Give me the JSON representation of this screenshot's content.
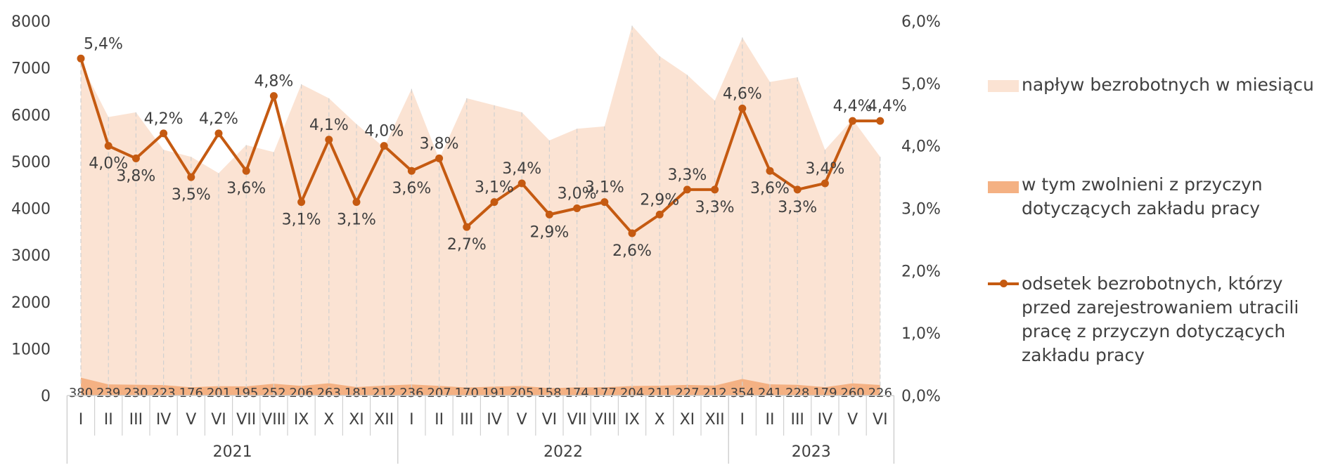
{
  "chart_data": {
    "type": "area",
    "categories": [
      "I",
      "II",
      "III",
      "IV",
      "V",
      "VI",
      "VII",
      "VIII",
      "IX",
      "X",
      "XI",
      "XII",
      "I",
      "II",
      "III",
      "IV",
      "V",
      "VI",
      "VII",
      "VIII",
      "IX",
      "X",
      "XI",
      "XII",
      "I",
      "II",
      "III",
      "IV",
      "V",
      "VI"
    ],
    "years": [
      {
        "label": "2021",
        "count": 12
      },
      {
        "label": "2022",
        "count": 12
      },
      {
        "label": "2023",
        "count": 6
      }
    ],
    "left_axis": {
      "min": 0,
      "max": 8000,
      "ticks": [
        "0",
        "1000",
        "2000",
        "3000",
        "4000",
        "5000",
        "6000",
        "7000",
        "8000"
      ]
    },
    "right_axis": {
      "min": 0,
      "max": 6,
      "ticks": [
        "0,0%",
        "1,0%",
        "2,0%",
        "3,0%",
        "4,0%",
        "5,0%",
        "6,0%"
      ]
    },
    "series": [
      {
        "name": "napływ bezrobotnych w miesiącu",
        "kind": "area",
        "axis": "left",
        "color": "#fbe3d3",
        "values": [
          7100,
          5950,
          6050,
          5250,
          5100,
          4750,
          5350,
          5200,
          6650,
          6350,
          5800,
          5300,
          6550,
          5050,
          6350,
          6200,
          6050,
          5450,
          5700,
          5750,
          7900,
          7250,
          6850,
          6300,
          7650,
          6700,
          6800,
          5250,
          5900,
          5100
        ]
      },
      {
        "name": "w tym zwolnieni z przyczyn\ndotyczących zakładu pracy",
        "kind": "area",
        "axis": "left",
        "color": "#f4b183",
        "values": [
          380,
          239,
          230,
          223,
          176,
          201,
          195,
          252,
          206,
          263,
          181,
          212,
          236,
          207,
          170,
          191,
          205,
          158,
          174,
          177,
          204,
          211,
          227,
          212,
          354,
          241,
          228,
          179,
          260,
          226
        ],
        "labels": [
          "380",
          "239",
          "230",
          "223",
          "176",
          "201",
          "195",
          "252",
          "206",
          "263",
          "181",
          "212",
          "236",
          "207",
          "170",
          "191",
          "205",
          "158",
          "174",
          "177",
          "204",
          "211",
          "227",
          "212",
          "354",
          "241",
          "228",
          "179",
          "260",
          "226"
        ]
      },
      {
        "name": "odsetek bezrobotnych, którzy\nprzed zarejestrowaniem utracili\npracę z przyczyn dotyczących\nzakładu pracy",
        "kind": "line",
        "axis": "right",
        "color": "#c55a11",
        "values": [
          5.4,
          4.0,
          3.8,
          4.2,
          3.5,
          4.2,
          3.6,
          4.8,
          3.1,
          4.1,
          3.1,
          4.0,
          3.6,
          3.8,
          2.7,
          3.1,
          3.4,
          2.9,
          3.0,
          3.1,
          2.6,
          2.9,
          3.3,
          3.3,
          4.6,
          3.6,
          3.3,
          3.4,
          4.4,
          4.4
        ],
        "labels": [
          "5,4%",
          "4,0%",
          "3,8%",
          "4,2%",
          "3,5%",
          "4,2%",
          "3,6%",
          "4,8%",
          "3,1%",
          "4,1%",
          "3,1%",
          "4,0%",
          "3,6%",
          "3,8%",
          "2,7%",
          "3,1%",
          "3,4%",
          "2,9%",
          "3,0%",
          "3,1%",
          "2,6%",
          "2,9%",
          "3,3%",
          "3,3%",
          "4,6%",
          "3,6%",
          "3,3%",
          "3,4%",
          "4,4%",
          "4,4%"
        ]
      }
    ],
    "legend_position": "right",
    "grid": false
  }
}
